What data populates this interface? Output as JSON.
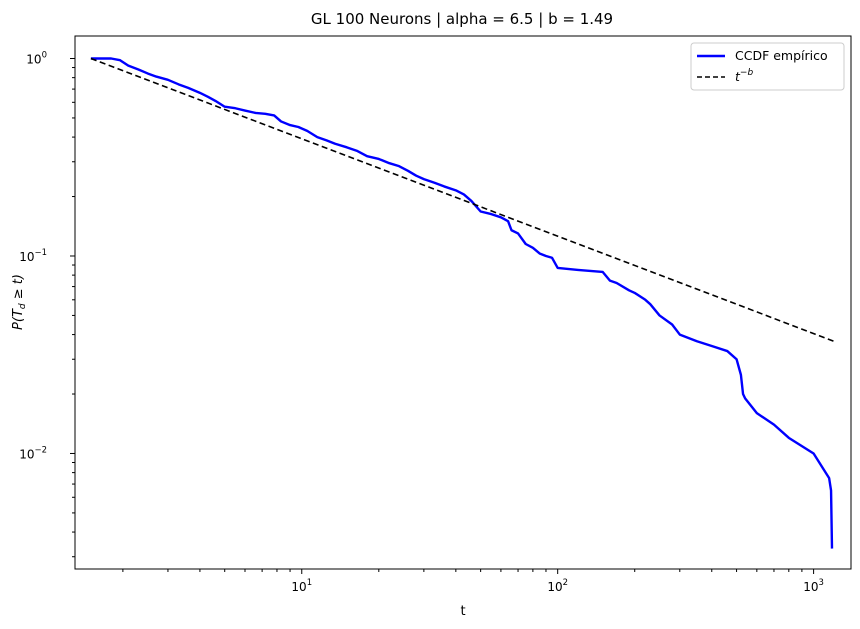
{
  "chart_data": {
    "type": "line",
    "title": "GL 100 Neurons | alpha = 6.5 | b = 1.49",
    "xlabel": "t",
    "ylabel_parts": {
      "p": "P(",
      "t1": "T",
      "sub": "d",
      "rel": " ≥ ",
      "t2": "t",
      "close": ")"
    },
    "xscale": "log",
    "yscale": "log",
    "xlim": [
      1.3,
      1400
    ],
    "ylim": [
      0.0026,
      1.3
    ],
    "x_ticks": [
      {
        "value": 10,
        "base": "10",
        "exp": "1"
      },
      {
        "value": 100,
        "base": "10",
        "exp": "2"
      },
      {
        "value": 1000,
        "base": "10",
        "exp": "3"
      }
    ],
    "y_ticks": [
      {
        "value": 0.01,
        "base": "10",
        "exp": "−2"
      },
      {
        "value": 0.1,
        "base": "10",
        "exp": "−1"
      },
      {
        "value": 1,
        "base": "10",
        "exp": "0"
      }
    ],
    "grid": false,
    "legend_position": "top-right",
    "colors": {
      "empirical": "#0000ff",
      "fit": "#000000"
    },
    "series": [
      {
        "name": "CCDF empírico",
        "style": "solid",
        "x": [
          1.5,
          1.8,
          1.95,
          2.1,
          2.3,
          2.5,
          2.7,
          3.0,
          3.3,
          3.6,
          4.0,
          4.3,
          4.6,
          5.0,
          5.5,
          6.0,
          6.6,
          7.2,
          7.8,
          8.3,
          9.0,
          9.7,
          10.5,
          11.5,
          12.5,
          13.5,
          15,
          16.5,
          18,
          20,
          22,
          24,
          26,
          28,
          30,
          33,
          36,
          40,
          43,
          46,
          50,
          55,
          60,
          64,
          66,
          70,
          75,
          80,
          85,
          90,
          95,
          100,
          120,
          150,
          160,
          170,
          190,
          200,
          220,
          230,
          250,
          280,
          300,
          350,
          400,
          460,
          500,
          520,
          530,
          540,
          600,
          700,
          800,
          1000,
          1150,
          1170,
          1180
        ],
        "y": [
          1.0,
          1.0,
          0.98,
          0.92,
          0.88,
          0.84,
          0.81,
          0.78,
          0.74,
          0.71,
          0.67,
          0.64,
          0.61,
          0.57,
          0.56,
          0.545,
          0.53,
          0.525,
          0.515,
          0.48,
          0.46,
          0.45,
          0.43,
          0.4,
          0.385,
          0.37,
          0.355,
          0.34,
          0.32,
          0.31,
          0.295,
          0.285,
          0.27,
          0.255,
          0.245,
          0.235,
          0.225,
          0.215,
          0.205,
          0.19,
          0.168,
          0.163,
          0.157,
          0.15,
          0.135,
          0.13,
          0.115,
          0.11,
          0.103,
          0.1,
          0.098,
          0.087,
          0.085,
          0.083,
          0.075,
          0.073,
          0.067,
          0.065,
          0.06,
          0.057,
          0.05,
          0.045,
          0.04,
          0.037,
          0.035,
          0.033,
          0.03,
          0.025,
          0.02,
          0.019,
          0.016,
          0.014,
          0.012,
          0.01,
          0.0075,
          0.0065,
          0.0033
        ]
      },
      {
        "name": "t^{-b}",
        "label_base": "t",
        "label_exp": "−b",
        "style": "dashed",
        "x": [
          1.5,
          1200
        ],
        "y": [
          1.0,
          0.037
        ]
      }
    ]
  }
}
